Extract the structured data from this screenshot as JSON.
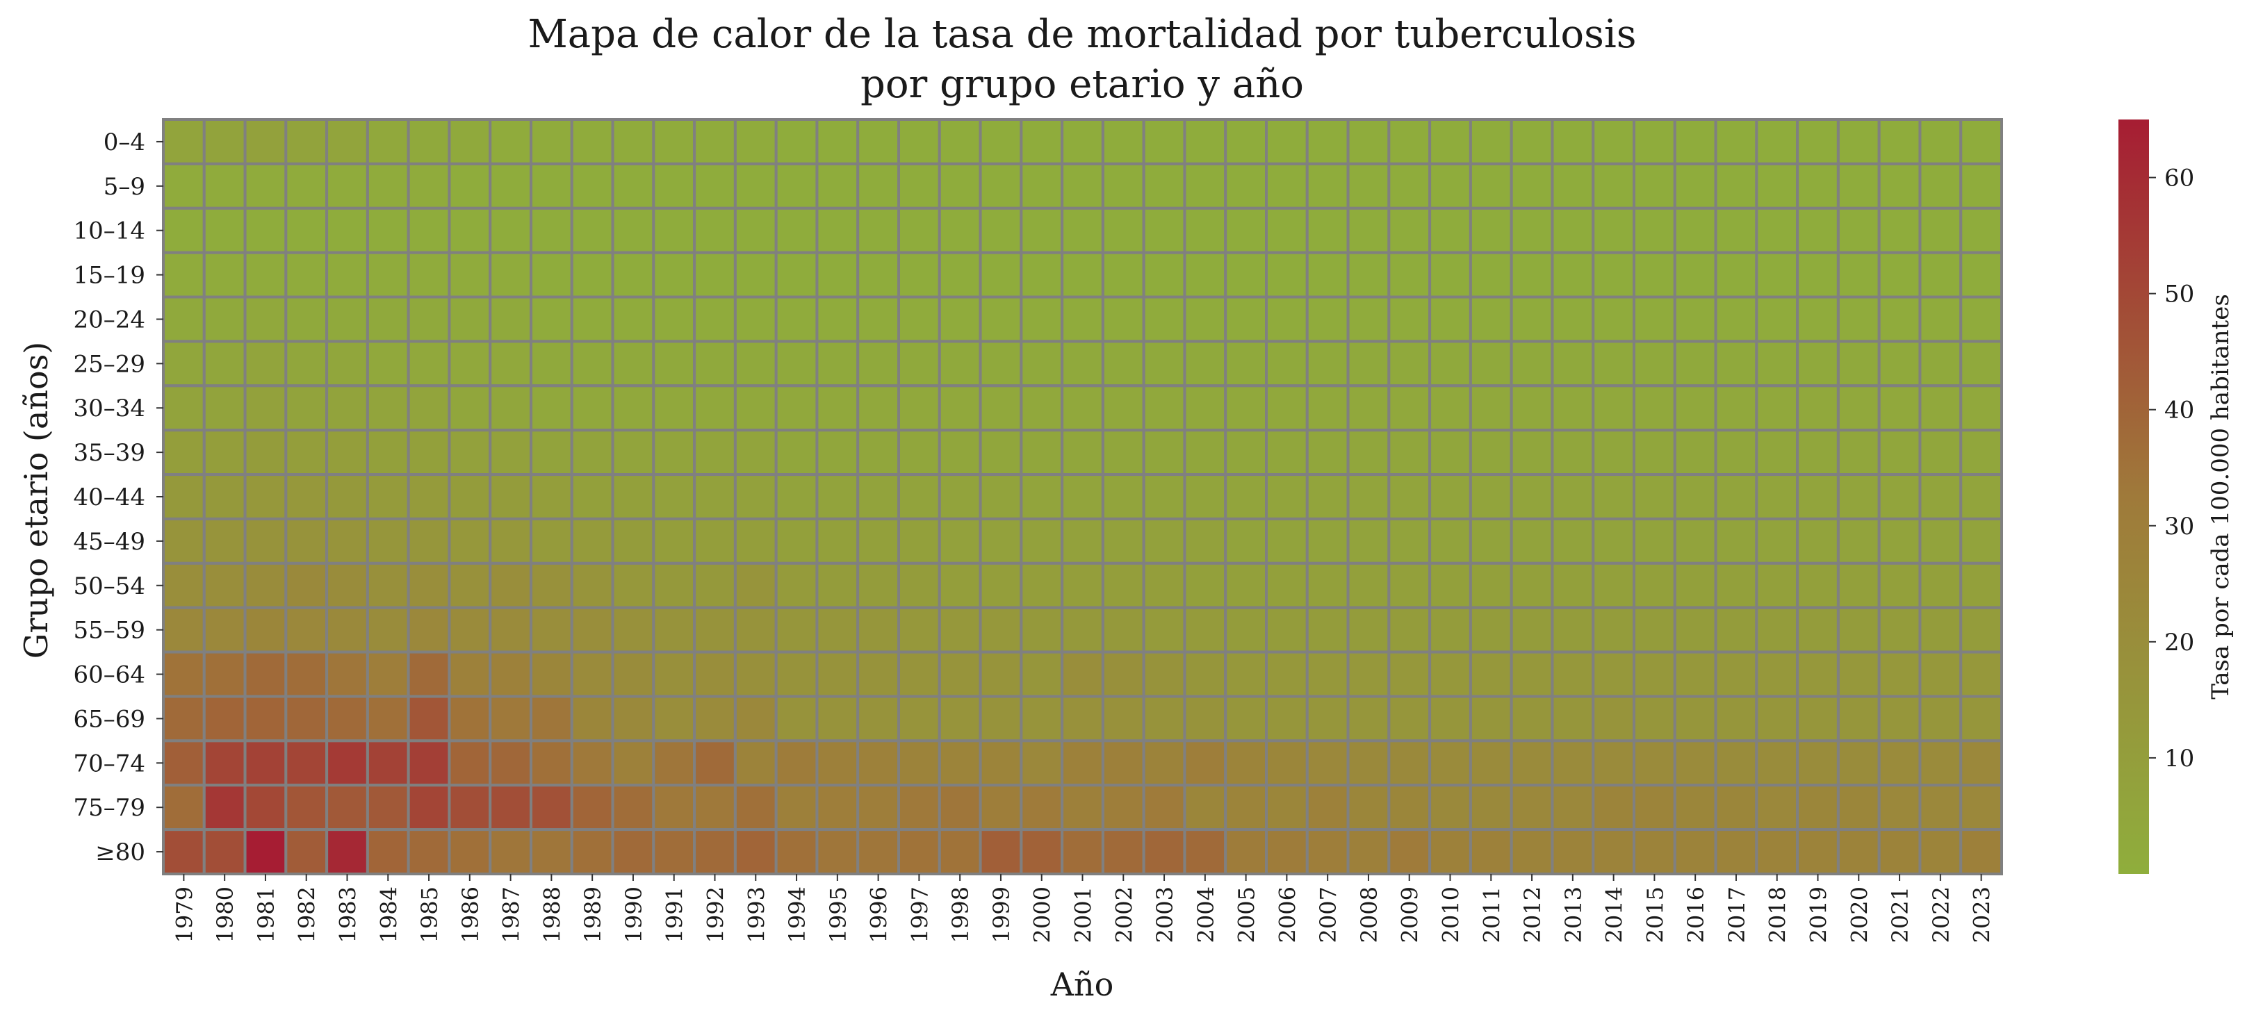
{
  "chart_data": {
    "type": "heatmap",
    "title_lines": [
      "Mapa de calor de la tasa de mortalidad por tuberculosis",
      "por grupo etario y año"
    ],
    "xlabel": "Año",
    "ylabel": "Grupo etario (años)",
    "colorbar_label": "Tasa por cada 100.000 habitantes",
    "colorbar_ticks": [
      10,
      20,
      30,
      40,
      50,
      60
    ],
    "value_range": [
      0,
      65
    ],
    "colors": {
      "low": "#8fae3c",
      "mid": "#9f7a3a",
      "high": "#a61d33",
      "grid": "#808080"
    },
    "x": [
      "1979",
      "1980",
      "1981",
      "1982",
      "1983",
      "1984",
      "1985",
      "1986",
      "1987",
      "1988",
      "1989",
      "1990",
      "1991",
      "1992",
      "1993",
      "1994",
      "1995",
      "1996",
      "1997",
      "1998",
      "1999",
      "2000",
      "2001",
      "2002",
      "2003",
      "2004",
      "2005",
      "2006",
      "2007",
      "2008",
      "2009",
      "2010",
      "2011",
      "2012",
      "2013",
      "2014",
      "2015",
      "2016",
      "2017",
      "2018",
      "2019",
      "2020",
      "2021",
      "2022",
      "2023"
    ],
    "y": [
      "0–4",
      "5–9",
      "10–14",
      "15–19",
      "20–24",
      "25–29",
      "30–34",
      "35–39",
      "40–44",
      "45–49",
      "50–54",
      "55–59",
      "60–64",
      "65–69",
      "70–74",
      "75–79",
      "≥80"
    ],
    "values": [
      [
        6,
        7,
        8,
        7,
        6,
        4,
        3,
        3,
        2,
        2,
        2,
        2,
        2,
        2,
        2,
        1,
        1,
        1,
        1,
        1,
        1,
        1,
        1,
        1,
        1,
        1,
        1,
        1,
        1,
        1,
        1,
        1,
        1,
        1,
        1,
        1,
        1,
        1,
        1,
        1,
        1,
        1,
        1,
        1,
        1
      ],
      [
        2,
        2,
        2,
        2,
        2,
        2,
        2,
        1,
        1,
        1,
        1,
        1,
        1,
        1,
        1,
        1,
        1,
        1,
        1,
        1,
        1,
        1,
        1,
        1,
        1,
        1,
        1,
        1,
        1,
        1,
        1,
        1,
        1,
        1,
        1,
        1,
        1,
        1,
        1,
        1,
        1,
        1,
        1,
        1,
        1
      ],
      [
        1,
        1,
        1,
        1,
        1,
        1,
        1,
        1,
        1,
        1,
        1,
        1,
        1,
        1,
        1,
        1,
        1,
        1,
        1,
        1,
        1,
        1,
        1,
        1,
        1,
        1,
        1,
        1,
        1,
        1,
        1,
        1,
        1,
        1,
        1,
        1,
        1,
        1,
        1,
        1,
        1,
        1,
        1,
        1,
        1
      ],
      [
        2,
        2,
        2,
        2,
        2,
        2,
        2,
        2,
        2,
        1,
        1,
        1,
        1,
        1,
        1,
        1,
        1,
        1,
        1,
        1,
        1,
        1,
        1,
        1,
        1,
        1,
        1,
        1,
        1,
        1,
        1,
        1,
        1,
        1,
        1,
        1,
        1,
        1,
        1,
        1,
        1,
        1,
        1,
        1,
        1
      ],
      [
        3,
        3,
        4,
        3,
        3,
        3,
        3,
        3,
        3,
        2,
        2,
        2,
        2,
        2,
        2,
        2,
        2,
        2,
        2,
        2,
        2,
        2,
        2,
        2,
        2,
        2,
        2,
        2,
        2,
        2,
        2,
        2,
        2,
        2,
        2,
        2,
        2,
        2,
        2,
        2,
        2,
        2,
        2,
        2,
        2
      ],
      [
        5,
        5,
        6,
        5,
        5,
        4,
        4,
        4,
        4,
        3,
        3,
        3,
        3,
        3,
        3,
        3,
        3,
        3,
        3,
        3,
        3,
        3,
        3,
        3,
        3,
        3,
        3,
        3,
        3,
        3,
        3,
        3,
        3,
        3,
        3,
        3,
        3,
        3,
        3,
        3,
        3,
        3,
        3,
        3,
        3
      ],
      [
        7,
        7,
        8,
        7,
        7,
        6,
        6,
        5,
        5,
        4,
        4,
        4,
        4,
        4,
        4,
        4,
        4,
        4,
        4,
        4,
        4,
        4,
        4,
        4,
        4,
        4,
        4,
        4,
        4,
        4,
        4,
        4,
        4,
        4,
        4,
        4,
        4,
        4,
        4,
        4,
        4,
        4,
        4,
        4,
        4
      ],
      [
        10,
        10,
        11,
        10,
        10,
        9,
        9,
        8,
        8,
        7,
        7,
        6,
        6,
        6,
        6,
        5,
        5,
        5,
        5,
        5,
        5,
        5,
        5,
        5,
        5,
        5,
        5,
        5,
        5,
        5,
        5,
        5,
        5,
        5,
        5,
        5,
        5,
        5,
        5,
        5,
        5,
        5,
        5,
        5,
        5
      ],
      [
        13,
        13,
        14,
        14,
        13,
        12,
        12,
        11,
        11,
        10,
        9,
        9,
        8,
        8,
        8,
        7,
        7,
        7,
        7,
        7,
        7,
        6,
        6,
        6,
        6,
        6,
        6,
        6,
        6,
        6,
        6,
        6,
        6,
        6,
        6,
        6,
        6,
        6,
        6,
        6,
        6,
        6,
        6,
        6,
        6
      ],
      [
        16,
        16,
        17,
        17,
        16,
        15,
        15,
        14,
        14,
        12,
        12,
        11,
        10,
        10,
        10,
        9,
        9,
        9,
        9,
        8,
        8,
        8,
        8,
        8,
        8,
        8,
        7,
        7,
        7,
        7,
        7,
        7,
        7,
        7,
        7,
        7,
        7,
        7,
        7,
        7,
        7,
        7,
        7,
        7,
        7
      ],
      [
        20,
        20,
        21,
        23,
        21,
        19,
        20,
        18,
        20,
        18,
        16,
        14,
        13,
        13,
        16,
        12,
        11,
        11,
        11,
        10,
        10,
        10,
        10,
        10,
        10,
        9,
        9,
        9,
        9,
        9,
        9,
        9,
        9,
        9,
        9,
        9,
        9,
        9,
        9,
        9,
        9,
        9,
        9,
        9,
        9
      ],
      [
        24,
        24,
        25,
        24,
        23,
        21,
        24,
        22,
        22,
        20,
        20,
        18,
        17,
        17,
        17,
        15,
        15,
        15,
        14,
        14,
        14,
        13,
        13,
        13,
        12,
        12,
        11,
        11,
        11,
        11,
        11,
        11,
        11,
        11,
        11,
        11,
        11,
        11,
        11,
        11,
        11,
        11,
        11,
        11,
        11
      ],
      [
        35,
        36,
        38,
        37,
        34,
        30,
        38,
        28,
        28,
        25,
        22,
        21,
        19,
        20,
        19,
        17,
        17,
        17,
        16,
        16,
        16,
        15,
        20,
        19,
        17,
        15,
        14,
        14,
        14,
        14,
        14,
        14,
        14,
        14,
        14,
        14,
        14,
        14,
        14,
        14,
        14,
        14,
        14,
        14,
        14
      ],
      [
        38,
        40,
        40,
        39,
        38,
        36,
        45,
        35,
        33,
        34,
        25,
        23,
        20,
        22,
        24,
        17,
        17,
        17,
        16,
        16,
        17,
        16,
        18,
        18,
        17,
        17,
        15,
        15,
        15,
        15,
        15,
        15,
        15,
        15,
        15,
        16,
        15,
        15,
        15,
        15,
        15,
        15,
        15,
        15,
        15
      ],
      [
        42,
        51,
        52,
        51,
        55,
        52,
        53,
        40,
        39,
        36,
        33,
        28,
        34,
        38,
        27,
        31,
        29,
        28,
        27,
        26,
        26,
        24,
        28,
        29,
        27,
        30,
        26,
        25,
        24,
        23,
        23,
        22,
        22,
        22,
        22,
        22,
        22,
        22,
        21,
        21,
        21,
        21,
        22,
        22,
        24
      ],
      [
        37,
        56,
        50,
        45,
        44,
        44,
        51,
        48,
        48,
        47,
        40,
        37,
        33,
        33,
        36,
        29,
        30,
        30,
        33,
        34,
        30,
        32,
        29,
        30,
        32,
        25,
        26,
        25,
        28,
        25,
        25,
        23,
        23,
        24,
        24,
        26,
        26,
        25,
        25,
        24,
        25,
        25,
        24,
        24,
        24
      ],
      [
        48,
        48,
        65,
        43,
        61,
        40,
        38,
        36,
        34,
        34,
        36,
        38,
        37,
        38,
        40,
        36,
        34,
        34,
        35,
        35,
        42,
        41,
        37,
        38,
        39,
        38,
        31,
        31,
        30,
        29,
        32,
        28,
        28,
        27,
        27,
        27,
        27,
        27,
        27,
        27,
        27,
        27,
        27,
        26,
        29
      ]
    ]
  }
}
